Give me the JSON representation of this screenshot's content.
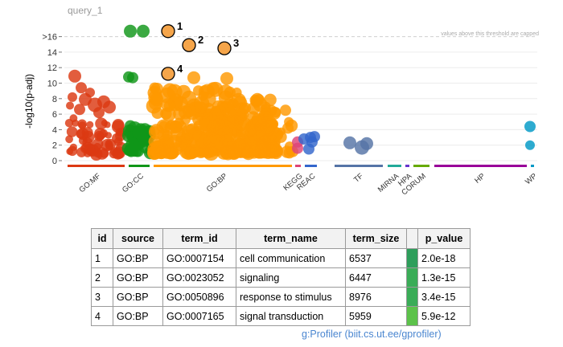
{
  "footer": "g:Profiler (biit.cs.ut.ee/gprofiler)",
  "chart_data": {
    "type": "scatter",
    "title": "query_1",
    "xlabel": "",
    "ylabel": "-log10(p-adj)",
    "ylim": [
      0,
      17
    ],
    "yticks": [
      "0",
      "2",
      "4",
      "6",
      "8",
      "10",
      "12",
      "14",
      ">16"
    ],
    "cap_note": "values above this threshold are capped",
    "grid": true,
    "sources": [
      {
        "name": "GO:MF",
        "color": "#dc3912"
      },
      {
        "name": "GO:CC",
        "color": "#109618"
      },
      {
        "name": "GO:BP",
        "color": "#ff9900"
      },
      {
        "name": "KEGG",
        "color": "#dd4477"
      },
      {
        "name": "REAC",
        "color": "#3366cc"
      },
      {
        "name": "TF",
        "color": "#5574a6"
      },
      {
        "name": "MIRNA",
        "color": "#22aa99"
      },
      {
        "name": "HPA",
        "color": "#6633cc"
      },
      {
        "name": "CORUM",
        "color": "#66aa00"
      },
      {
        "name": "HP",
        "color": "#990099"
      },
      {
        "name": "WP",
        "color": "#0099c6"
      }
    ],
    "highlighted": [
      {
        "label": "1",
        "source": "GO:BP",
        "value": 16.7
      },
      {
        "label": "2",
        "source": "GO:BP",
        "value": 14.9
      },
      {
        "label": "3",
        "source": "GO:BP",
        "value": 14.5
      },
      {
        "label": "4",
        "source": "GO:BP",
        "value": 11.2
      }
    ]
  },
  "table": {
    "headers": [
      "id",
      "source",
      "term_id",
      "term_name",
      "term_size",
      "",
      "p_value"
    ],
    "rows": [
      {
        "id": "1",
        "source": "GO:BP",
        "term_id": "GO:0007154",
        "term_name": "cell communication",
        "term_size": "6537",
        "p_value": "2.0e-18",
        "color": "#2e9e5b"
      },
      {
        "id": "2",
        "source": "GO:BP",
        "term_id": "GO:0023052",
        "term_name": "signaling",
        "term_size": "6447",
        "p_value": "1.3e-15",
        "color": "#3aac57"
      },
      {
        "id": "3",
        "source": "GO:BP",
        "term_id": "GO:0050896",
        "term_name": "response to stimulus",
        "term_size": "8976",
        "p_value": "3.4e-15",
        "color": "#3aac57"
      },
      {
        "id": "4",
        "source": "GO:BP",
        "term_id": "GO:0007165",
        "term_name": "signal transduction",
        "term_size": "5959",
        "p_value": "5.9e-12",
        "color": "#5cc24a"
      }
    ]
  }
}
